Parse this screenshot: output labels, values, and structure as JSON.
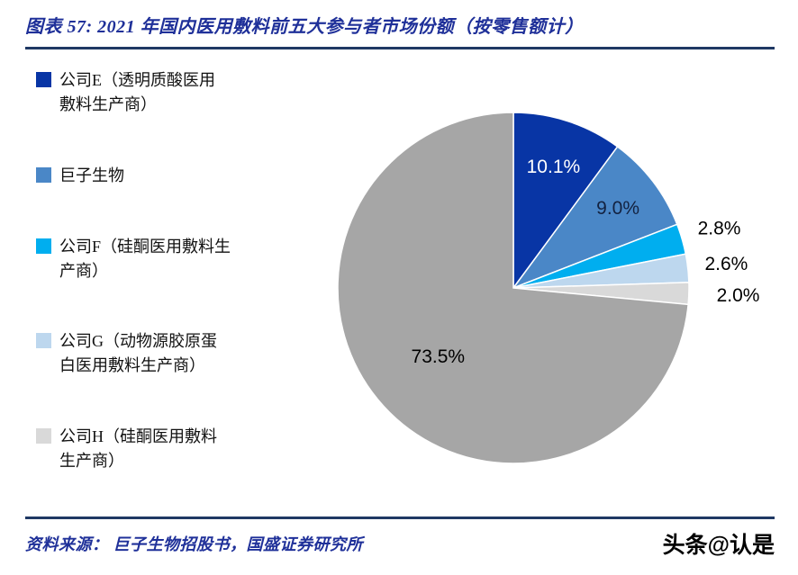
{
  "header": {
    "title": "图表 57:  2021 年国内医用敷料前五大参与者市场份额（按零售额计）"
  },
  "colors": {
    "accent_text": "#1F3099",
    "rule": "#1F3864",
    "background": "#FFFFFF"
  },
  "chart_data": {
    "type": "pie",
    "title": "2021 年国内医用敷料前五大参与者市场份额（按零售额计）",
    "legend_position": "left",
    "start_angle_deg": 0,
    "direction": "clockwise",
    "unit": "%",
    "slices": [
      {
        "name": "公司E（透明质酸医用敷料生产商）",
        "value": 10.1,
        "label": "10.1%",
        "color": "#0835A5",
        "label_color": "#FFFFFF",
        "label_r": 0.73,
        "in_legend": true
      },
      {
        "name": "巨子生物",
        "value": 9.0,
        "label": "9.0%",
        "color": "#4A87C7",
        "label_color": "#132240",
        "label_r": 0.75,
        "in_legend": true
      },
      {
        "name": "公司F（硅酮医用敷料生产商）",
        "value": 2.8,
        "label": "2.8%",
        "color": "#00AEEF",
        "label_color": "#000000",
        "label_r": 1.22,
        "in_legend": true
      },
      {
        "name": "公司G（动物源胶原蛋白医用敷料生产商）",
        "value": 2.6,
        "label": "2.6%",
        "color": "#BDD7EE",
        "label_color": "#000000",
        "label_r": 1.22,
        "in_legend": true
      },
      {
        "name": "公司H（硅酮医用敷料生产商）",
        "value": 2.0,
        "label": "2.0%",
        "color": "#D9D9D9",
        "label_color": "#000000",
        "label_r": 1.28,
        "in_legend": true
      },
      {
        "name": "",
        "value": 73.5,
        "label": "73.5%",
        "color": "#A6A6A6",
        "label_color": "#000000",
        "label_r": 0.58,
        "in_legend": false
      }
    ]
  },
  "footer": {
    "source": "资料来源：  巨子生物招股书，国盛证券研究所",
    "watermark": "头条@认是"
  }
}
